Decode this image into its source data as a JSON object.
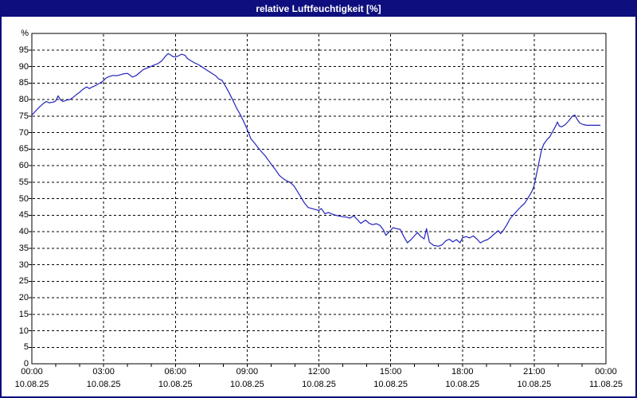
{
  "window": {
    "title": "relative Luftfeuchtigkeit [%]",
    "titlebar_bg": "#0e0e7e",
    "titlebar_text_color": "#ffffff",
    "frame_color": "#0e0e7e",
    "background": "#ffffff"
  },
  "chart_data": {
    "type": "line",
    "title": "relative Luftfeuchtigkeit [%]",
    "ylabel": "relative Luftfeuchtigkeit",
    "unit_label": "%",
    "grid": "dashed",
    "legend": "none",
    "y_axis": {
      "min": 0,
      "max": 100,
      "tick_step": 5,
      "tick_labels": [
        0,
        5,
        10,
        15,
        20,
        25,
        30,
        35,
        40,
        45,
        50,
        55,
        60,
        65,
        70,
        75,
        80,
        85,
        90,
        95
      ]
    },
    "x_axis": {
      "range_hours": [
        0,
        24
      ],
      "minor_tick_hours": 1,
      "major_tick_hours": 3,
      "ticks": [
        {
          "hour": 0,
          "time": "00:00",
          "date": "10.08.25"
        },
        {
          "hour": 3,
          "time": "03:00",
          "date": "10.08.25"
        },
        {
          "hour": 6,
          "time": "06:00",
          "date": "10.08.25"
        },
        {
          "hour": 9,
          "time": "09:00",
          "date": "10.08.25"
        },
        {
          "hour": 12,
          "time": "12:00",
          "date": "10.08.25"
        },
        {
          "hour": 15,
          "time": "15:00",
          "date": "10.08.25"
        },
        {
          "hour": 18,
          "time": "18:00",
          "date": "10.08.25"
        },
        {
          "hour": 21,
          "time": "21:00",
          "date": "10.08.25"
        },
        {
          "hour": 24,
          "time": "00:00",
          "date": "11.08.25"
        }
      ]
    },
    "colors": {
      "line": "#2323bd",
      "grid": "#000000",
      "plot_border": "#000000",
      "text": "#000000"
    },
    "series": [
      {
        "name": "relative Luftfeuchtigkeit [%]",
        "points": [
          [
            0.0,
            75.3
          ],
          [
            0.17,
            76.6
          ],
          [
            0.33,
            77.8
          ],
          [
            0.5,
            78.9
          ],
          [
            0.6,
            79.4
          ],
          [
            0.72,
            79.0
          ],
          [
            0.9,
            79.2
          ],
          [
            1.0,
            79.6
          ],
          [
            1.1,
            81.1
          ],
          [
            1.2,
            79.9
          ],
          [
            1.3,
            79.4
          ],
          [
            1.45,
            79.8
          ],
          [
            1.6,
            80.0
          ],
          [
            1.75,
            80.8
          ],
          [
            1.9,
            81.7
          ],
          [
            2.0,
            82.2
          ],
          [
            2.1,
            82.9
          ],
          [
            2.2,
            83.4
          ],
          [
            2.3,
            83.8
          ],
          [
            2.4,
            83.3
          ],
          [
            2.5,
            83.7
          ],
          [
            2.6,
            84.0
          ],
          [
            2.7,
            84.4
          ],
          [
            2.8,
            84.8
          ],
          [
            2.9,
            85.2
          ],
          [
            3.0,
            85.7
          ],
          [
            3.1,
            86.5
          ],
          [
            3.25,
            87.0
          ],
          [
            3.4,
            87.3
          ],
          [
            3.55,
            87.2
          ],
          [
            3.7,
            87.5
          ],
          [
            3.85,
            87.8
          ],
          [
            4.0,
            87.9
          ],
          [
            4.1,
            87.4
          ],
          [
            4.2,
            86.8
          ],
          [
            4.35,
            87.2
          ],
          [
            4.5,
            88.1
          ],
          [
            4.65,
            89.0
          ],
          [
            4.8,
            89.5
          ],
          [
            4.95,
            89.9
          ],
          [
            5.1,
            90.4
          ],
          [
            5.25,
            90.8
          ],
          [
            5.4,
            91.5
          ],
          [
            5.5,
            92.3
          ],
          [
            5.6,
            93.2
          ],
          [
            5.7,
            93.9
          ],
          [
            5.8,
            93.5
          ],
          [
            5.9,
            93.0
          ],
          [
            6.0,
            92.9
          ],
          [
            6.1,
            93.1
          ],
          [
            6.25,
            93.7
          ],
          [
            6.4,
            93.4
          ],
          [
            6.5,
            92.4
          ],
          [
            6.65,
            91.7
          ],
          [
            6.8,
            91.1
          ],
          [
            6.95,
            90.6
          ],
          [
            7.1,
            89.9
          ],
          [
            7.25,
            89.2
          ],
          [
            7.4,
            88.5
          ],
          [
            7.55,
            87.8
          ],
          [
            7.7,
            87.1
          ],
          [
            7.8,
            86.3
          ],
          [
            7.95,
            85.8
          ],
          [
            8.1,
            84.0
          ],
          [
            8.25,
            82.0
          ],
          [
            8.4,
            79.8
          ],
          [
            8.55,
            77.5
          ],
          [
            8.7,
            75.6
          ],
          [
            8.85,
            73.4
          ],
          [
            9.0,
            71.0
          ],
          [
            9.15,
            68.2
          ],
          [
            9.3,
            66.9
          ],
          [
            9.45,
            65.5
          ],
          [
            9.6,
            64.2
          ],
          [
            9.75,
            63.0
          ],
          [
            9.9,
            61.5
          ],
          [
            10.05,
            60.0
          ],
          [
            10.2,
            58.6
          ],
          [
            10.35,
            57.0
          ],
          [
            10.5,
            56.1
          ],
          [
            10.65,
            55.4
          ],
          [
            10.8,
            54.9
          ],
          [
            10.95,
            53.9
          ],
          [
            11.1,
            52.2
          ],
          [
            11.25,
            50.4
          ],
          [
            11.4,
            48.6
          ],
          [
            11.55,
            47.3
          ],
          [
            11.7,
            47.0
          ],
          [
            11.85,
            46.7
          ],
          [
            12.0,
            46.4
          ],
          [
            12.1,
            47.0
          ],
          [
            12.25,
            45.4
          ],
          [
            12.4,
            45.8
          ],
          [
            12.55,
            45.3
          ],
          [
            12.7,
            45.0
          ],
          [
            12.85,
            44.7
          ],
          [
            13.0,
            44.5
          ],
          [
            13.15,
            44.4
          ],
          [
            13.3,
            44.1
          ],
          [
            13.45,
            44.8
          ],
          [
            13.6,
            43.7
          ],
          [
            13.75,
            42.5
          ],
          [
            13.95,
            43.5
          ],
          [
            14.1,
            42.5
          ],
          [
            14.25,
            42.1
          ],
          [
            14.4,
            42.4
          ],
          [
            14.55,
            41.9
          ],
          [
            14.7,
            40.5
          ],
          [
            14.8,
            38.9
          ],
          [
            14.95,
            40.0
          ],
          [
            15.1,
            41.2
          ],
          [
            15.25,
            40.9
          ],
          [
            15.4,
            40.7
          ],
          [
            15.55,
            38.5
          ],
          [
            15.7,
            36.6
          ],
          [
            15.85,
            37.6
          ],
          [
            16.0,
            38.8
          ],
          [
            16.12,
            39.7
          ],
          [
            16.25,
            38.6
          ],
          [
            16.4,
            37.8
          ],
          [
            16.5,
            40.9
          ],
          [
            16.62,
            36.8
          ],
          [
            16.8,
            35.8
          ],
          [
            17.0,
            35.6
          ],
          [
            17.15,
            36.0
          ],
          [
            17.3,
            37.2
          ],
          [
            17.45,
            37.7
          ],
          [
            17.6,
            36.9
          ],
          [
            17.75,
            37.6
          ],
          [
            17.9,
            36.6
          ],
          [
            18.0,
            38.1
          ],
          [
            18.15,
            38.5
          ],
          [
            18.3,
            38.1
          ],
          [
            18.45,
            38.7
          ],
          [
            18.6,
            37.8
          ],
          [
            18.75,
            36.6
          ],
          [
            18.9,
            37.2
          ],
          [
            19.05,
            37.6
          ],
          [
            19.2,
            38.4
          ],
          [
            19.35,
            39.4
          ],
          [
            19.5,
            40.3
          ],
          [
            19.6,
            39.4
          ],
          [
            19.72,
            40.5
          ],
          [
            19.85,
            42.0
          ],
          [
            20.0,
            44.0
          ],
          [
            20.15,
            45.2
          ],
          [
            20.3,
            46.4
          ],
          [
            20.45,
            47.6
          ],
          [
            20.6,
            48.6
          ],
          [
            20.7,
            49.7
          ],
          [
            20.8,
            50.9
          ],
          [
            20.92,
            52.4
          ],
          [
            21.0,
            54.0
          ],
          [
            21.1,
            57.5
          ],
          [
            21.2,
            61.0
          ],
          [
            21.3,
            64.5
          ],
          [
            21.4,
            66.5
          ],
          [
            21.55,
            68.0
          ],
          [
            21.65,
            68.7
          ],
          [
            21.75,
            70.0
          ],
          [
            21.9,
            72.0
          ],
          [
            21.97,
            73.2
          ],
          [
            22.05,
            72.0
          ],
          [
            22.15,
            71.7
          ],
          [
            22.3,
            72.4
          ],
          [
            22.45,
            73.6
          ],
          [
            22.6,
            75.0
          ],
          [
            22.7,
            75.3
          ],
          [
            22.8,
            74.0
          ],
          [
            22.9,
            72.9
          ],
          [
            23.05,
            72.4
          ],
          [
            23.2,
            72.2
          ],
          [
            23.45,
            72.2
          ],
          [
            23.77,
            72.2
          ]
        ]
      }
    ]
  }
}
